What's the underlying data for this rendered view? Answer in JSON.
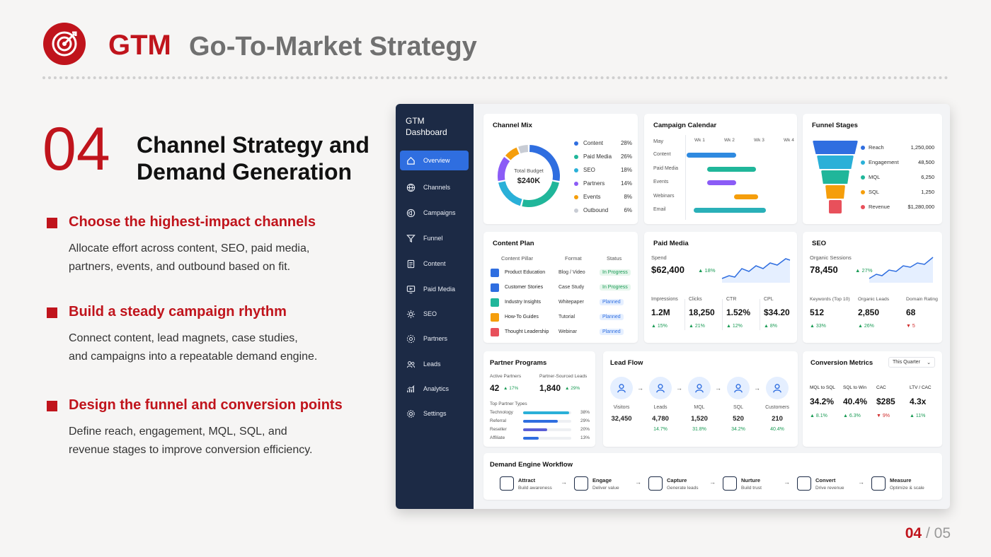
{
  "header": {
    "brand": "GTM",
    "title": "Go-To-Market Strategy"
  },
  "section": {
    "number": "04",
    "heading_line1": "Channel Strategy and",
    "heading_line2": "Demand Generation"
  },
  "points": [
    {
      "title": "Choose the highest-impact channels",
      "desc_line1": "Allocate effort across content, SEO, paid media,",
      "desc_line2": "partners, events, and outbound based on fit."
    },
    {
      "title": "Build a steady campaign rhythm",
      "desc_line1": "Connect content, lead magnets, case studies,",
      "desc_line2": "and campaigns into a repeatable demand engine."
    },
    {
      "title": "Design the funnel and conversion points",
      "desc_line1": "Define reach, engagement, MQL, SQL, and",
      "desc_line2": "revenue stages to improve conversion efficiency."
    }
  ],
  "pager": {
    "current": "04",
    "separator": "/",
    "total": "05"
  },
  "dashboard": {
    "title_line1": "GTM",
    "title_line2": "Dashboard",
    "nav": [
      "Overview",
      "Channels",
      "Campaigns",
      "Funnel",
      "Content",
      "Paid Media",
      "SEO",
      "Partners",
      "Leads",
      "Analytics",
      "Settings"
    ],
    "nav_icons": [
      "home-icon",
      "globe-icon",
      "megaphone-icon",
      "funnel-icon",
      "document-icon",
      "monitor-icon",
      "seo-gear-icon",
      "partners-icon",
      "users-icon",
      "analytics-icon",
      "settings-icon"
    ],
    "channel_mix": {
      "title": "Channel Mix",
      "center_label": "Total Budget",
      "center_value": "$240K",
      "items": [
        {
          "name": "Content",
          "pct": "28%",
          "value": 28,
          "color": "#2f6ee0"
        },
        {
          "name": "Paid Media",
          "pct": "26%",
          "value": 26,
          "color": "#20b69a"
        },
        {
          "name": "SEO",
          "pct": "18%",
          "value": 18,
          "color": "#2ab0d8"
        },
        {
          "name": "Partners",
          "pct": "14%",
          "value": 14,
          "color": "#8b5cf6"
        },
        {
          "name": "Events",
          "pct": "8%",
          "value": 8,
          "color": "#f59e0b"
        },
        {
          "name": "Outbound",
          "pct": "6%",
          "value": 6,
          "color": "#c8ccd4"
        }
      ]
    },
    "calendar": {
      "title": "Campaign Calendar",
      "month": "May",
      "weeks": [
        "Wk 1",
        "Wk 2",
        "Wk 3",
        "Wk 4"
      ],
      "rows": [
        {
          "name": "Content",
          "start": 0.0,
          "end": 0.5,
          "color": "#2f8ae0"
        },
        {
          "name": "Paid Media",
          "start": 0.21,
          "end": 0.7,
          "color": "#20b69a"
        },
        {
          "name": "Events",
          "start": 0.21,
          "end": 0.5,
          "color": "#8b5cf6"
        },
        {
          "name": "Webinars",
          "start": 0.48,
          "end": 0.72,
          "color": "#f59e0b"
        },
        {
          "name": "Email",
          "start": 0.07,
          "end": 0.8,
          "color": "#2ab0b8"
        }
      ]
    },
    "funnel_stages": {
      "title": "Funnel Stages",
      "items": [
        {
          "name": "Reach",
          "value": "1,250,000",
          "color": "#2f6ee0"
        },
        {
          "name": "Engagement",
          "value": "48,500",
          "color": "#2ab0d8"
        },
        {
          "name": "MQL",
          "value": "6,250",
          "color": "#20b69a"
        },
        {
          "name": "SQL",
          "value": "1,250",
          "color": "#f59e0b"
        },
        {
          "name": "Revenue",
          "value": "$1,280,000",
          "color": "#e8505b"
        }
      ]
    },
    "content_plan": {
      "title": "Content Plan",
      "headers": [
        "Content Pillar",
        "Format",
        "Status"
      ],
      "rows": [
        {
          "pillar": "Product Education",
          "format": "Blog / Video",
          "status": "In Progress",
          "color": "#2f6ee0"
        },
        {
          "pillar": "Customer Stories",
          "format": "Case Study",
          "status": "In Progress",
          "color": "#2f6ee0"
        },
        {
          "pillar": "Industry Insights",
          "format": "Whitepaper",
          "status": "Planned",
          "color": "#20b69a"
        },
        {
          "pillar": "How-To Guides",
          "format": "Tutorial",
          "status": "Planned",
          "color": "#f59e0b"
        },
        {
          "pillar": "Thought Leadership",
          "format": "Webinar",
          "status": "Planned",
          "color": "#e8505b"
        }
      ]
    },
    "paid_media": {
      "title": "Paid Media",
      "spend_label": "Spend",
      "spend": "$62,400",
      "spend_change": "18%",
      "metrics": [
        {
          "label": "Impressions",
          "value": "1.2M",
          "change": "15%"
        },
        {
          "label": "Clicks",
          "value": "18,250",
          "change": "21%"
        },
        {
          "label": "CTR",
          "value": "1.52%",
          "change": "12%"
        },
        {
          "label": "CPL",
          "value": "$34.20",
          "change": "8%"
        }
      ]
    },
    "seo": {
      "title": "SEO",
      "sessions_label": "Organic Sessions",
      "sessions": "78,450",
      "sessions_change": "27%",
      "metrics": [
        {
          "label": "Keywords (Top 10)",
          "value": "512",
          "change": "33%",
          "dir": "up"
        },
        {
          "label": "Organic Leads",
          "value": "2,850",
          "change": "26%",
          "dir": "up"
        },
        {
          "label": "Domain Rating",
          "value": "68",
          "change": "5",
          "dir": "down"
        }
      ]
    },
    "partners": {
      "title": "Partner Programs",
      "active_label": "Active Partners",
      "active": "42",
      "active_change": "17%",
      "sourced_label": "Partner-Sourced Leads",
      "sourced": "1,840",
      "sourced_change": "29%",
      "types_label": "Top Partner Types",
      "types": [
        {
          "name": "Technology",
          "pct": "38%",
          "value": 38,
          "color": "#2ab0d8"
        },
        {
          "name": "Referral",
          "pct": "29%",
          "value": 29,
          "color": "#2f6ee0"
        },
        {
          "name": "Reseller",
          "pct": "20%",
          "value": 20,
          "color": "#5b5fd6"
        },
        {
          "name": "Affiliate",
          "pct": "13%",
          "value": 13,
          "color": "#2f6ee0"
        }
      ]
    },
    "lead_flow": {
      "title": "Lead Flow",
      "stages": [
        {
          "name": "Visitors",
          "value": "32,450",
          "pct": ""
        },
        {
          "name": "Leads",
          "value": "4,780",
          "pct": "14.7%"
        },
        {
          "name": "MQL",
          "value": "1,520",
          "pct": "31.8%"
        },
        {
          "name": "SQL",
          "value": "520",
          "pct": "34.2%"
        },
        {
          "name": "Customers",
          "value": "210",
          "pct": "40.4%"
        }
      ]
    },
    "conversion": {
      "title": "Conversion Metrics",
      "period": "This Quarter",
      "metrics": [
        {
          "label": "MQL to SQL",
          "value": "34.2%",
          "change": "8.1%",
          "dir": "up"
        },
        {
          "label": "SQL to Win",
          "value": "40.4%",
          "change": "6.3%",
          "dir": "up"
        },
        {
          "label": "CAC",
          "value": "$285",
          "change": "9%",
          "dir": "down"
        },
        {
          "label": "LTV / CAC",
          "value": "4.3x",
          "change": "11%",
          "dir": "up"
        }
      ]
    },
    "workflow": {
      "title": "Demand Engine Workflow",
      "steps": [
        {
          "name": "Attract",
          "sub": "Build awareness",
          "icon": "megaphone-icon"
        },
        {
          "name": "Engage",
          "sub": "Deliver value",
          "icon": "person-icon"
        },
        {
          "name": "Capture",
          "sub": "Generate leads",
          "icon": "form-icon"
        },
        {
          "name": "Nurture",
          "sub": "Build trust",
          "icon": "nurture-icon"
        },
        {
          "name": "Convert",
          "sub": "Drive revenue",
          "icon": "dollar-icon"
        },
        {
          "name": "Measure",
          "sub": "Optimize & scale",
          "icon": "network-icon"
        }
      ]
    }
  }
}
